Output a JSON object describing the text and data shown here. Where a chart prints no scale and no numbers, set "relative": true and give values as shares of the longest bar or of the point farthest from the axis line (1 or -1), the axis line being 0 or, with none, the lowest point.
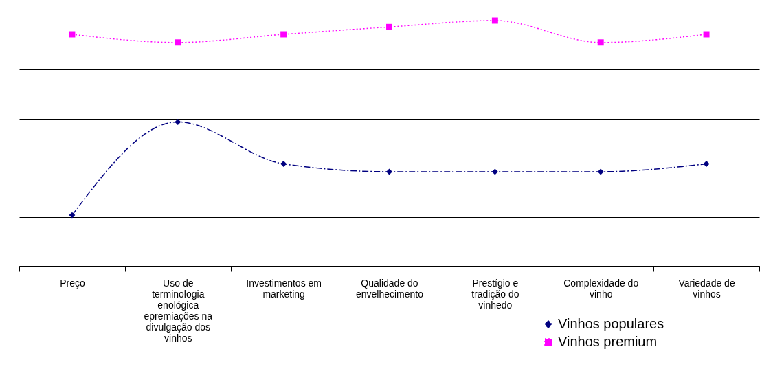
{
  "chart_data": {
    "type": "line",
    "relative": true,
    "categories": [
      "Preço",
      "Uso de terminologia enológica epremiações na divulgação dos vinhos",
      "Investimentos em marketing",
      "Qualidade do envelhecimento",
      "Prestígio e tradição do vinhedo",
      "Complexidade do vinho",
      "Variedade de vinhos"
    ],
    "series": [
      {
        "name": "Vinhos populares",
        "color": "#000080",
        "marker": "diamond",
        "line_style": "dashed",
        "values": [
          0.207,
          0.587,
          0.416,
          0.384,
          0.384,
          0.384,
          0.416
        ]
      },
      {
        "name": "Vinhos premium",
        "color": "#ff00ff",
        "marker": "square",
        "line_style": "dotted",
        "values": [
          0.944,
          0.911,
          0.944,
          0.974,
          1,
          0.911,
          0.944
        ]
      }
    ],
    "grid": "y",
    "legend": "bottom right"
  }
}
